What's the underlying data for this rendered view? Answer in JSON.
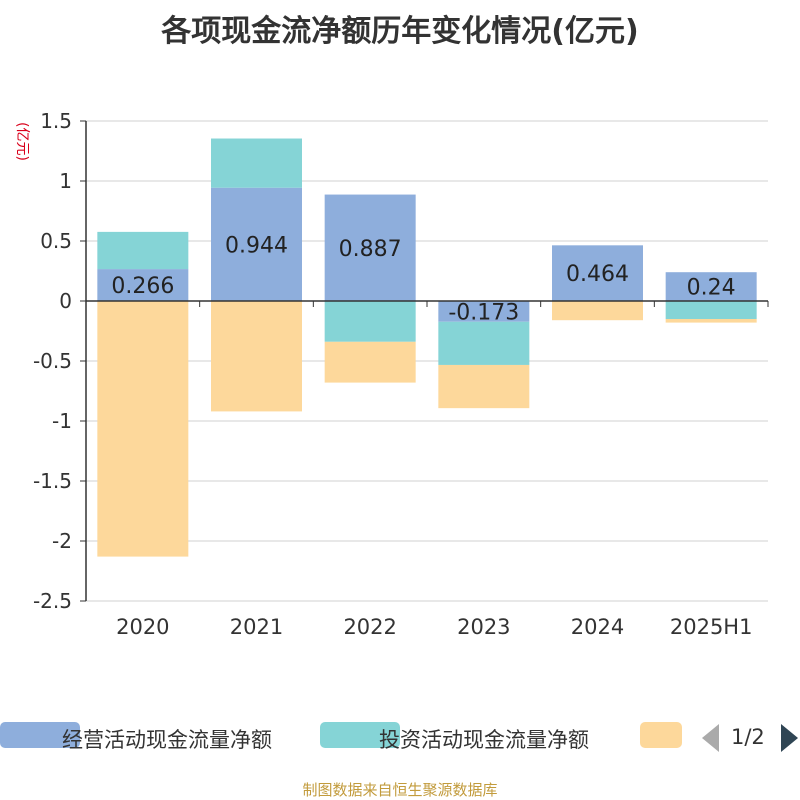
{
  "title": "各项现金流净额历年变化情况(亿元)",
  "unit_label": "(亿元)",
  "source": "制图数据来自恒生聚源数据库",
  "legend": {
    "items": [
      {
        "label": "经营活动现金流量净额",
        "color": "#8eaedc"
      },
      {
        "label": "投资活动现金流量净额",
        "color": "#85d4d6"
      },
      {
        "label": "",
        "color": "#fdd89b"
      }
    ],
    "page_text": "1/2"
  },
  "chart_data": {
    "type": "bar",
    "stacked": true,
    "categories": [
      "2020",
      "2021",
      "2022",
      "2023",
      "2024",
      "2025H1"
    ],
    "series": [
      {
        "name": "经营活动现金流量净额",
        "color": "#8eaedc",
        "values": [
          0.266,
          0.944,
          0.887,
          -0.173,
          0.464,
          0.24
        ]
      },
      {
        "name": "投资活动现金流量净额",
        "color": "#85d4d6",
        "values": [
          0.31,
          0.41,
          -0.34,
          -0.36,
          0.0,
          -0.15
        ]
      },
      {
        "name": "",
        "color": "#fdd89b",
        "values": [
          -2.13,
          -0.92,
          -0.34,
          -0.36,
          -0.16,
          -0.03
        ]
      }
    ],
    "data_labels": [
      "0.266",
      "0.944",
      "0.887",
      "-0.173",
      "0.464",
      "0.24"
    ],
    "y_ticks": [
      "1.5",
      "1",
      "0.5",
      "0",
      "-0.5",
      "-1",
      "-1.5",
      "-2",
      "-2.5"
    ],
    "ylim": [
      -2.5,
      1.5
    ],
    "grid": true,
    "legend_position": "bottom"
  }
}
